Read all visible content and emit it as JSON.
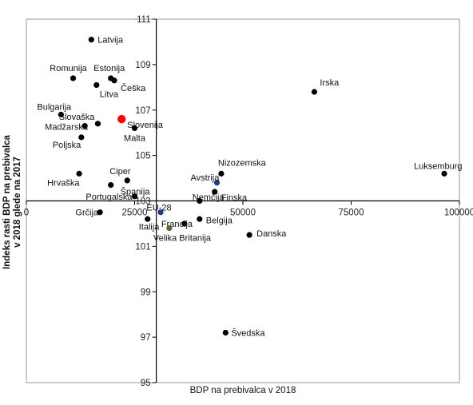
{
  "chart_data": {
    "type": "scatter",
    "title": "",
    "xlabel": "BDP na prebivalca v 2018",
    "ylabel_lines": [
      "Indeks rasti BDP na prebivalca",
      "v 2018 glede na 2017"
    ],
    "xlim": [
      0,
      100000
    ],
    "ylim": [
      95,
      111
    ],
    "x_crosses_y_at": 103,
    "y_crosses_x_at": 30000,
    "x_ticks": [
      0,
      25000,
      50000,
      75000,
      100000
    ],
    "y_ticks": [
      95,
      97,
      99,
      101,
      103,
      105,
      107,
      109,
      111
    ],
    "grid": false,
    "legend": "none",
    "point_color": "#000000",
    "points": [
      {
        "name": "Latvija",
        "x": 15000,
        "y": 110.1,
        "color": "#000000"
      },
      {
        "name": "Romunija",
        "x": 10800,
        "y": 108.4,
        "color": "#000000"
      },
      {
        "name": "Estonija",
        "x": 19500,
        "y": 108.4,
        "color": "#000000"
      },
      {
        "name": "Češka",
        "x": 20300,
        "y": 108.3,
        "color": "#000000"
      },
      {
        "name": "Litva",
        "x": 16200,
        "y": 108.1,
        "color": "#000000"
      },
      {
        "name": "Irska",
        "x": 66500,
        "y": 107.8,
        "color": "#000000"
      },
      {
        "name": "Bulgarija",
        "x": 8000,
        "y": 106.8,
        "color": "#000000"
      },
      {
        "name": "Slovaška",
        "x": 16500,
        "y": 106.4,
        "color": "#000000"
      },
      {
        "name": "Slovenija",
        "x": 22000,
        "y": 106.6,
        "color": "#ff0000"
      },
      {
        "name": "Madžarska",
        "x": 13500,
        "y": 106.3,
        "color": "#000000"
      },
      {
        "name": "Malta",
        "x": 25000,
        "y": 106.2,
        "color": "#000000"
      },
      {
        "name": "Poljska",
        "x": 12700,
        "y": 105.8,
        "color": "#000000"
      },
      {
        "name": "Nizozemska",
        "x": 45000,
        "y": 104.2,
        "color": "#000000"
      },
      {
        "name": "Luksemburg",
        "x": 96500,
        "y": 104.2,
        "color": "#000000"
      },
      {
        "name": "Hrvaška",
        "x": 12200,
        "y": 104.2,
        "color": "#000000"
      },
      {
        "name": "Ciper",
        "x": 23300,
        "y": 103.9,
        "color": "#000000"
      },
      {
        "name": "Avstrija",
        "x": 44000,
        "y": 103.8,
        "color": "#1f3a8a"
      },
      {
        "name": "Španija",
        "x": 19500,
        "y": 103.7,
        "color": "#000000"
      },
      {
        "name": "Finska",
        "x": 43500,
        "y": 103.4,
        "color": "#000000"
      },
      {
        "name": "Portugalska",
        "x": 25000,
        "y": 103.2,
        "color": "#000000"
      },
      {
        "name": "Nemčija",
        "x": 40000,
        "y": 103.0,
        "color": "#000000"
      },
      {
        "name": "EU-28",
        "x": 31000,
        "y": 102.5,
        "color": "#1f3a8a"
      },
      {
        "name": "Grčija",
        "x": 17000,
        "y": 102.5,
        "color": "#000000"
      },
      {
        "name": "Italija",
        "x": 28000,
        "y": 102.2,
        "color": "#000000"
      },
      {
        "name": "Belgija",
        "x": 40000,
        "y": 102.2,
        "color": "#000000"
      },
      {
        "name": "Francija",
        "x": 36500,
        "y": 102.0,
        "color": "#000000"
      },
      {
        "name": "Velika Britanija",
        "x": 33000,
        "y": 101.8,
        "color": "#556b2f"
      },
      {
        "name": "Danska",
        "x": 51500,
        "y": 101.5,
        "color": "#000000"
      },
      {
        "name": "Švedska",
        "x": 46000,
        "y": 97.2,
        "color": "#000000"
      }
    ]
  }
}
